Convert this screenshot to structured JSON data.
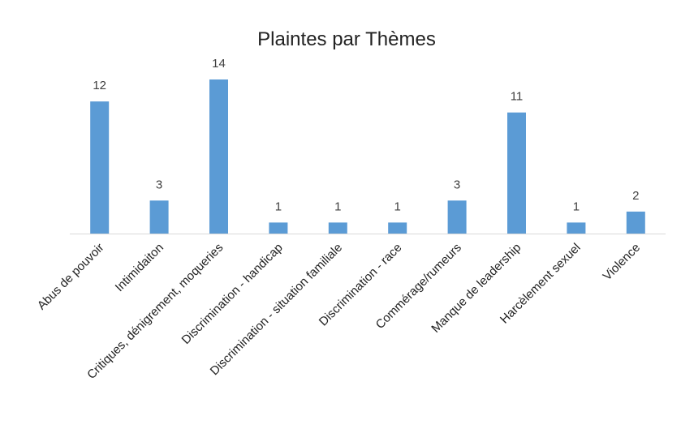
{
  "chart_data": {
    "type": "bar",
    "title": "Plaintes par Thèmes",
    "categories": [
      "Abus de pouvoir",
      "Intimidaiton",
      "Critiques, dénigrement, moqueries",
      "Discrimination - handicap",
      "Discrimination - situation familiale",
      "Discrimination - race",
      "Commérage/rumeurs",
      "Manque de leadership",
      "Harcèlement sexuel",
      "Violence"
    ],
    "values": [
      12,
      3,
      14,
      1,
      1,
      1,
      3,
      11,
      1,
      2
    ],
    "ylim": [
      0,
      14
    ],
    "grid": false,
    "legend": "none",
    "bar_color": "#5b9bd5",
    "axis_color": "#d9d9d9"
  }
}
